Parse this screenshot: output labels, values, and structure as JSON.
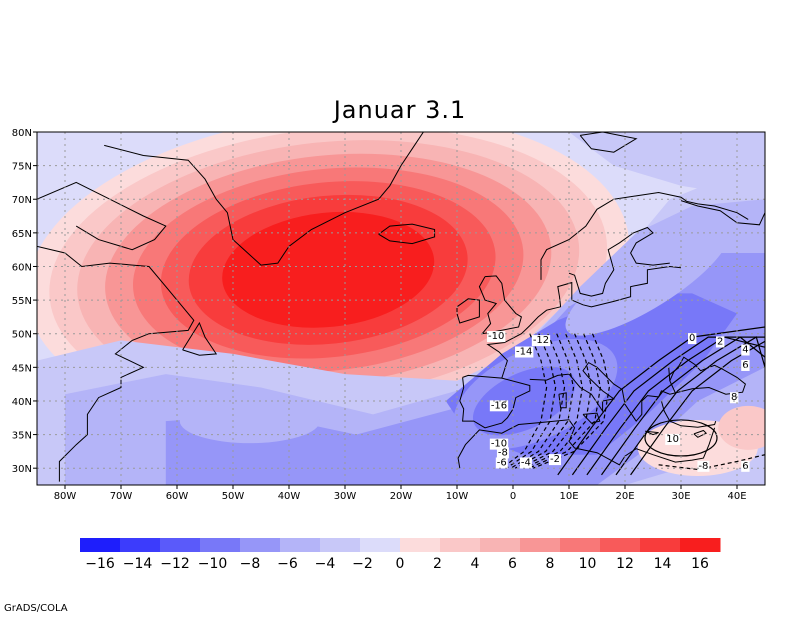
{
  "title": "Januar 3.1",
  "credit": "GrADS/COLA",
  "map": {
    "lon_range": [
      -85,
      45
    ],
    "lat_range": [
      27.5,
      80
    ],
    "lon_ticks": [
      {
        "v": -80,
        "t": "80W"
      },
      {
        "v": -70,
        "t": "70W"
      },
      {
        "v": -60,
        "t": "60W"
      },
      {
        "v": -50,
        "t": "50W"
      },
      {
        "v": -40,
        "t": "40W"
      },
      {
        "v": -30,
        "t": "30W"
      },
      {
        "v": -20,
        "t": "20W"
      },
      {
        "v": -10,
        "t": "10W"
      },
      {
        "v": 0,
        "t": "0"
      },
      {
        "v": 10,
        "t": "10E"
      },
      {
        "v": 20,
        "t": "20E"
      },
      {
        "v": 30,
        "t": "30E"
      },
      {
        "v": 40,
        "t": "40E"
      }
    ],
    "lat_ticks": [
      {
        "v": 30,
        "t": "30N"
      },
      {
        "v": 35,
        "t": "35N"
      },
      {
        "v": 40,
        "t": "40N"
      },
      {
        "v": 45,
        "t": "45N"
      },
      {
        "v": 50,
        "t": "50N"
      },
      {
        "v": 55,
        "t": "55N"
      },
      {
        "v": 60,
        "t": "60N"
      },
      {
        "v": 65,
        "t": "65N"
      },
      {
        "v": 70,
        "t": "70N"
      },
      {
        "v": 75,
        "t": "75N"
      },
      {
        "v": 80,
        "t": "80N"
      }
    ],
    "grid": true,
    "contour_labels": [
      {
        "t": "-10",
        "lon": -3,
        "lat": 49.8
      },
      {
        "t": "-12",
        "lon": 5,
        "lat": 49.2
      },
      {
        "t": "-14",
        "lon": 2,
        "lat": 47.5
      },
      {
        "t": "-16",
        "lon": -2.5,
        "lat": 39.5
      },
      {
        "t": "-10",
        "lon": -2.5,
        "lat": 33.8
      },
      {
        "t": "-8",
        "lon": -1.8,
        "lat": 32.5
      },
      {
        "t": "-6",
        "lon": -2,
        "lat": 31.0
      },
      {
        "t": "-4",
        "lon": 2.3,
        "lat": 31.0
      },
      {
        "t": "-2",
        "lon": 7.5,
        "lat": 31.5
      },
      {
        "t": "0",
        "lon": 32,
        "lat": 49.5
      },
      {
        "t": "2",
        "lon": 37,
        "lat": 49.0
      },
      {
        "t": "4",
        "lon": 41.5,
        "lat": 47.8
      },
      {
        "t": "6",
        "lon": 41.5,
        "lat": 45.5
      },
      {
        "t": "8",
        "lon": 39.5,
        "lat": 40.7
      },
      {
        "t": "10",
        "lon": 28.5,
        "lat": 34.5
      },
      {
        "t": "-8",
        "lon": 34,
        "lat": 30.5
      },
      {
        "t": "6",
        "lon": 41.5,
        "lat": 30.5
      }
    ]
  },
  "colorbar": {
    "colors": [
      "#1e1efc",
      "#3c3cfc",
      "#5a5afa",
      "#7878f8",
      "#9696f8",
      "#b4b4f8",
      "#c8c8f8",
      "#dcdcfa",
      "#fcdcdc",
      "#fac8c8",
      "#f8b4b4",
      "#f89696",
      "#f87878",
      "#f85a5a",
      "#f83c3c",
      "#f81e1e"
    ],
    "labels": [
      "-16",
      "-14",
      "-12",
      "-10",
      "-8",
      "-6",
      "-4",
      "-2",
      "0",
      "2",
      "4",
      "6",
      "8",
      "10",
      "12",
      "14",
      "16"
    ]
  }
}
